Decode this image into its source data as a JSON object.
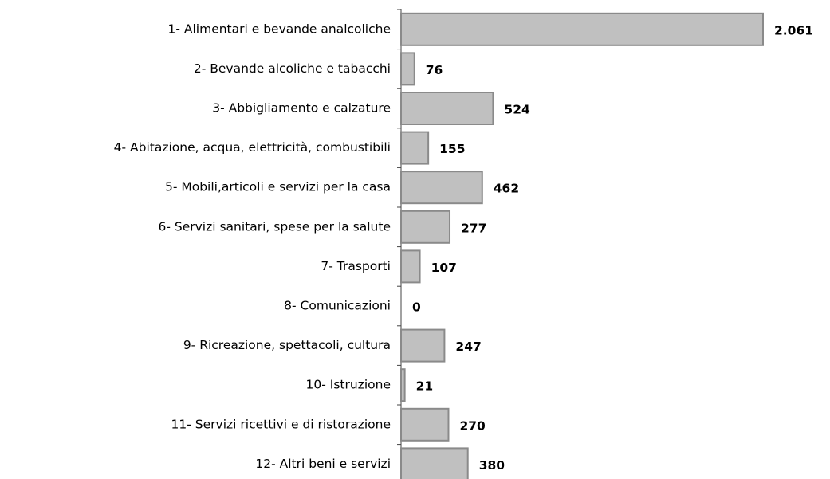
{
  "chart_data": {
    "type": "bar",
    "orientation": "horizontal",
    "categories": [
      "1- Alimentari e bevande analcoliche",
      "2- Bevande alcoliche e tabacchi",
      "3- Abbigliamento e calzature",
      "4- Abitazione, acqua, elettricità, combustibili",
      "5- Mobili,articoli e servizi per la casa",
      "6- Servizi sanitari, spese per la salute",
      "7- Trasporti",
      "8- Comunicazioni",
      "9- Ricreazione, spettacoli, cultura",
      "10-  Istruzione",
      "11- Servizi ricettivi e di ristorazione",
      "12- Altri beni e servizi"
    ],
    "values": [
      2061,
      76,
      524,
      155,
      462,
      277,
      107,
      0,
      247,
      21,
      270,
      380
    ],
    "value_labels": [
      "2.061",
      "76",
      "524",
      "155",
      "462",
      "277",
      "107",
      "0",
      "247",
      "21",
      "270",
      "380"
    ],
    "color": "#c0c0c0"
  }
}
